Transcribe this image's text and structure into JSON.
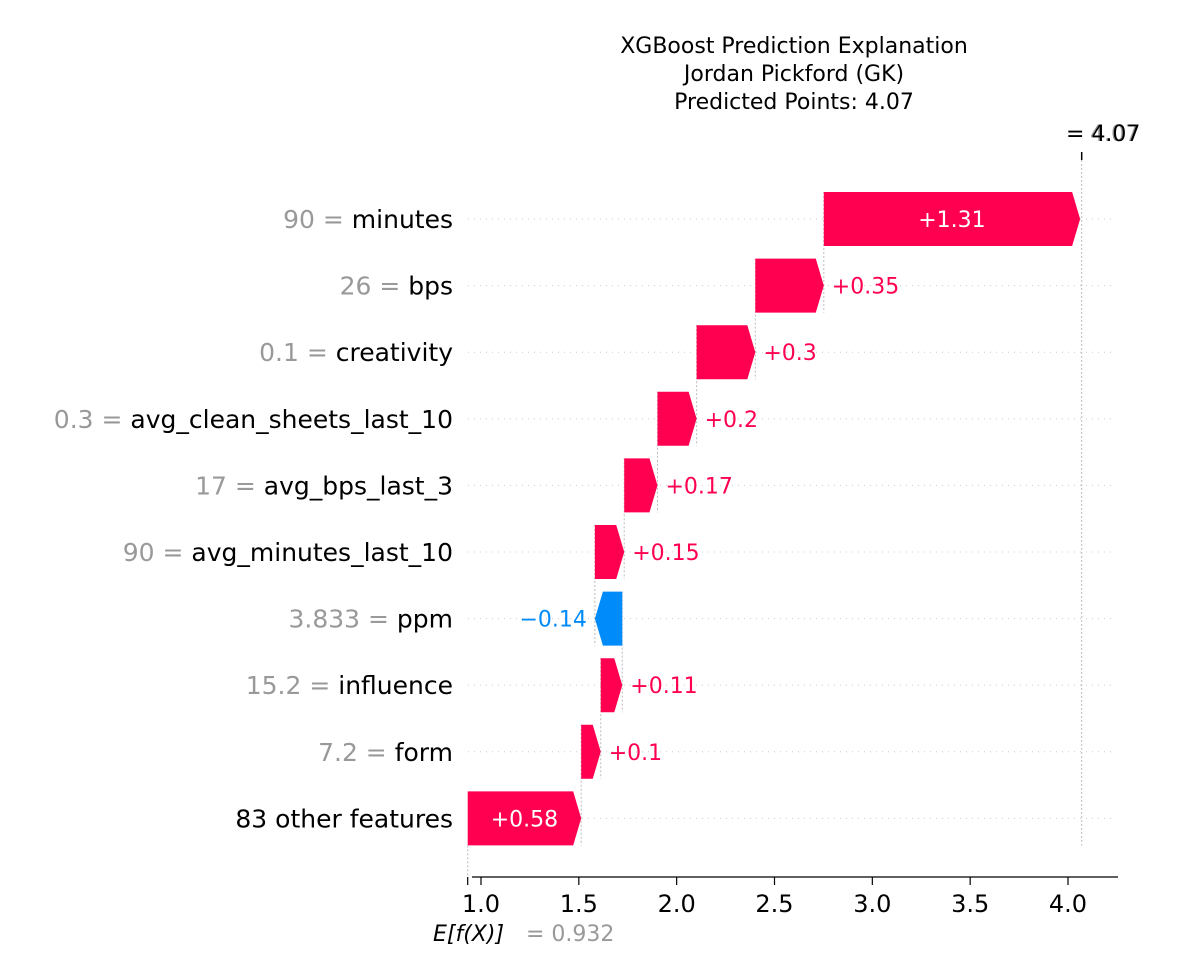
{
  "chart_data": {
    "type": "waterfall",
    "title_lines": [
      "XGBoost Prediction Explanation",
      "Jordan Pickford (GK)",
      "Predicted Points: 4.07"
    ],
    "base_value": 0.932,
    "base_label": "E[f(X)]",
    "base_value_text": "= 0.932",
    "final_value": 4.07,
    "final_value_text": "4.07",
    "final_value_secondary_text": "4.07",
    "xlim": [
      0.93,
      4.27
    ],
    "xticks": [
      1.0,
      1.5,
      2.0,
      2.5,
      3.0,
      3.5,
      4.0
    ],
    "xtick_labels": [
      "1.0",
      "1.5",
      "2.0",
      "2.5",
      "3.0",
      "3.5",
      "4.0"
    ],
    "grid": false,
    "features": [
      {
        "value": "90",
        "name": "minutes",
        "contribution": 1.31,
        "label": "+1.31"
      },
      {
        "value": "26",
        "name": "bps",
        "contribution": 0.35,
        "label": "+0.35"
      },
      {
        "value": "0.1",
        "name": "creativity",
        "contribution": 0.3,
        "label": "+0.3"
      },
      {
        "value": "0.3",
        "name": "avg_clean_sheets_last_10",
        "contribution": 0.2,
        "label": "+0.2"
      },
      {
        "value": "17",
        "name": "avg_bps_last_3",
        "contribution": 0.17,
        "label": "+0.17"
      },
      {
        "value": "90",
        "name": "avg_minutes_last_10",
        "contribution": 0.15,
        "label": "+0.15"
      },
      {
        "value": "3.833",
        "name": "ppm",
        "contribution": -0.14,
        "label": "−0.14"
      },
      {
        "value": "15.2",
        "name": "influence",
        "contribution": 0.11,
        "label": "+0.11"
      },
      {
        "value": "7.2",
        "name": "form",
        "contribution": 0.1,
        "label": "+0.1"
      },
      {
        "value": "",
        "name": "83 other features",
        "contribution": 0.58,
        "label": "+0.58"
      }
    ],
    "colors": {
      "positive": "#ff0051",
      "negative": "#008bfb",
      "muted": "#999999",
      "text": "#000000"
    }
  }
}
